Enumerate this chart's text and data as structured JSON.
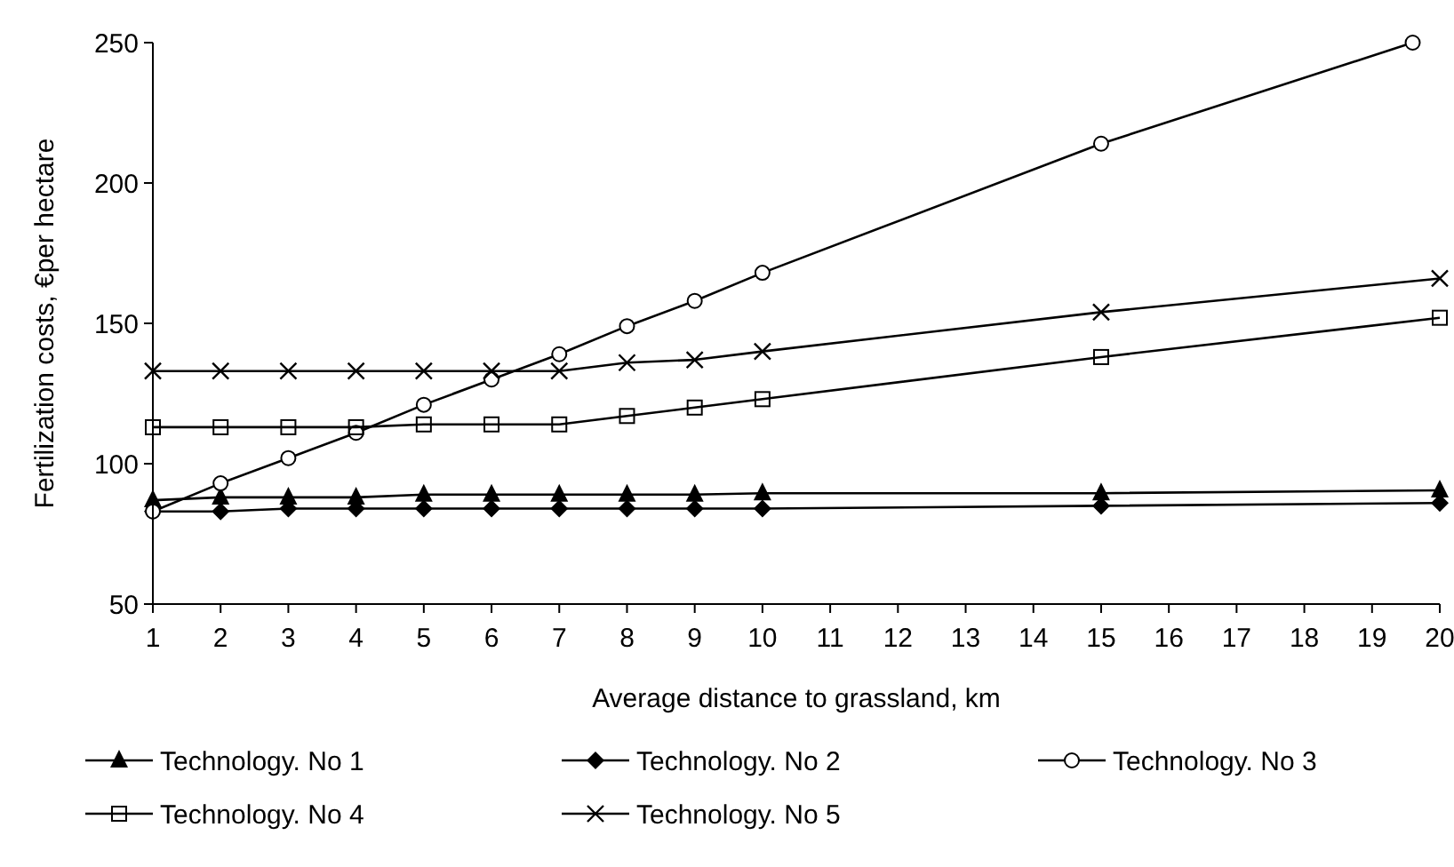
{
  "chart_data": {
    "type": "line",
    "xlabel": "Average distance to grassland, km",
    "ylabel": "Fertilization costs,  €per hectare",
    "x": [
      1,
      2,
      3,
      4,
      5,
      6,
      7,
      8,
      9,
      10,
      15,
      20
    ],
    "xlim": [
      1,
      20
    ],
    "xticks": [
      1,
      2,
      3,
      4,
      5,
      6,
      7,
      8,
      9,
      10,
      11,
      12,
      13,
      14,
      15,
      16,
      17,
      18,
      19,
      20
    ],
    "ylim": [
      50,
      250
    ],
    "yticks": [
      50,
      100,
      150,
      200,
      250
    ],
    "grid": false,
    "legend": "bottom",
    "line_style": "solid",
    "series": [
      {
        "name": "Technology. No 1",
        "color": "#000000",
        "marker": "triangle",
        "values": [
          87,
          88,
          88,
          88,
          89,
          89,
          89,
          89,
          89,
          89.5,
          89.5,
          90.5
        ]
      },
      {
        "name": "Technology. No 2",
        "color": "#000000",
        "marker": "diamond",
        "values": [
          83,
          83,
          84,
          84,
          84,
          84,
          84,
          84,
          84,
          84,
          85,
          86
        ]
      },
      {
        "name": "Technology. No 3",
        "color": "#000000",
        "marker": "circle",
        "x": [
          1,
          2,
          3,
          4,
          5,
          6,
          7,
          8,
          9,
          10,
          15,
          19.6
        ],
        "values": [
          83,
          93,
          102,
          111,
          121,
          130,
          139,
          149,
          158,
          168,
          214,
          250
        ]
      },
      {
        "name": "Technology. No 4",
        "color": "#000000",
        "marker": "square",
        "values": [
          113,
          113,
          113,
          113,
          114,
          114,
          114,
          117,
          120,
          123,
          138,
          152
        ]
      },
      {
        "name": "Technology. No 5",
        "color": "#000000",
        "marker": "cross",
        "values": [
          133,
          133,
          133,
          133,
          133,
          133,
          133,
          136,
          137,
          140,
          154,
          166
        ]
      }
    ]
  }
}
